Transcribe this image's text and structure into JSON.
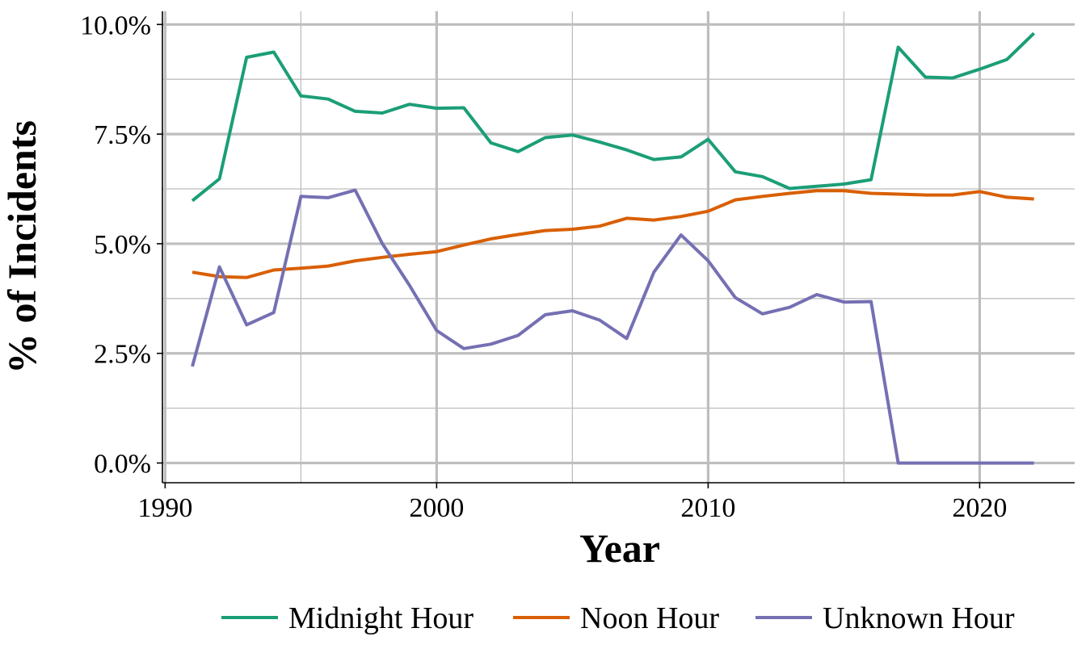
{
  "chart_data": {
    "type": "line",
    "xlabel": "Year",
    "ylabel": "% of Incidents",
    "xlim": [
      1989.9,
      1993.5
    ],
    "ylim": [
      -0.45,
      10.3
    ],
    "x_ticks": [
      1990,
      2000,
      2010,
      2020
    ],
    "y_ticks": [
      0,
      2.5,
      5,
      7.5,
      10
    ],
    "y_tick_labels": [
      "0.0%",
      "2.5%",
      "5.0%",
      "7.5%",
      "10.0%"
    ],
    "grid": true,
    "legend_position": "bottom",
    "x": [
      1991,
      1992,
      1993,
      1994,
      1995,
      1996,
      1997,
      1998,
      1999,
      2000,
      2001,
      2002,
      2003,
      2004,
      2005,
      2006,
      2007,
      2008,
      2009,
      2010,
      2011,
      2012,
      2013,
      2014,
      2015,
      2016,
      2017,
      2018,
      2019,
      2020,
      2021,
      2022
    ],
    "series": [
      {
        "name": "Midnight Hour",
        "color": "#1b9e77",
        "values": [
          5.98,
          6.48,
          9.25,
          9.37,
          8.37,
          8.3,
          8.02,
          7.98,
          8.18,
          8.09,
          8.1,
          7.3,
          7.1,
          7.42,
          7.48,
          7.32,
          7.14,
          6.92,
          6.98,
          7.38,
          6.64,
          6.53,
          6.26,
          6.31,
          6.36,
          6.46,
          9.48,
          8.8,
          8.78,
          8.98,
          9.2,
          9.8
        ]
      },
      {
        "name": "Noon Hour",
        "color": "#d95f02",
        "values": [
          4.35,
          4.25,
          4.23,
          4.4,
          4.44,
          4.49,
          4.61,
          4.69,
          4.76,
          4.82,
          4.97,
          5.11,
          5.21,
          5.3,
          5.33,
          5.4,
          5.58,
          5.54,
          5.62,
          5.74,
          6.0,
          6.08,
          6.15,
          6.21,
          6.21,
          6.15,
          6.13,
          6.11,
          6.11,
          6.19,
          6.06,
          6.02
        ]
      },
      {
        "name": "Unknown Hour",
        "color": "#7570b3",
        "values": [
          2.2,
          4.47,
          3.15,
          3.43,
          6.08,
          6.05,
          6.22,
          5.0,
          4.05,
          3.02,
          2.61,
          2.71,
          2.91,
          3.38,
          3.47,
          3.26,
          2.84,
          4.35,
          5.2,
          4.61,
          3.77,
          3.4,
          3.55,
          3.84,
          3.67,
          3.68,
          0.0,
          0.0,
          0.0,
          0.0,
          0.0,
          0.0
        ]
      }
    ]
  }
}
